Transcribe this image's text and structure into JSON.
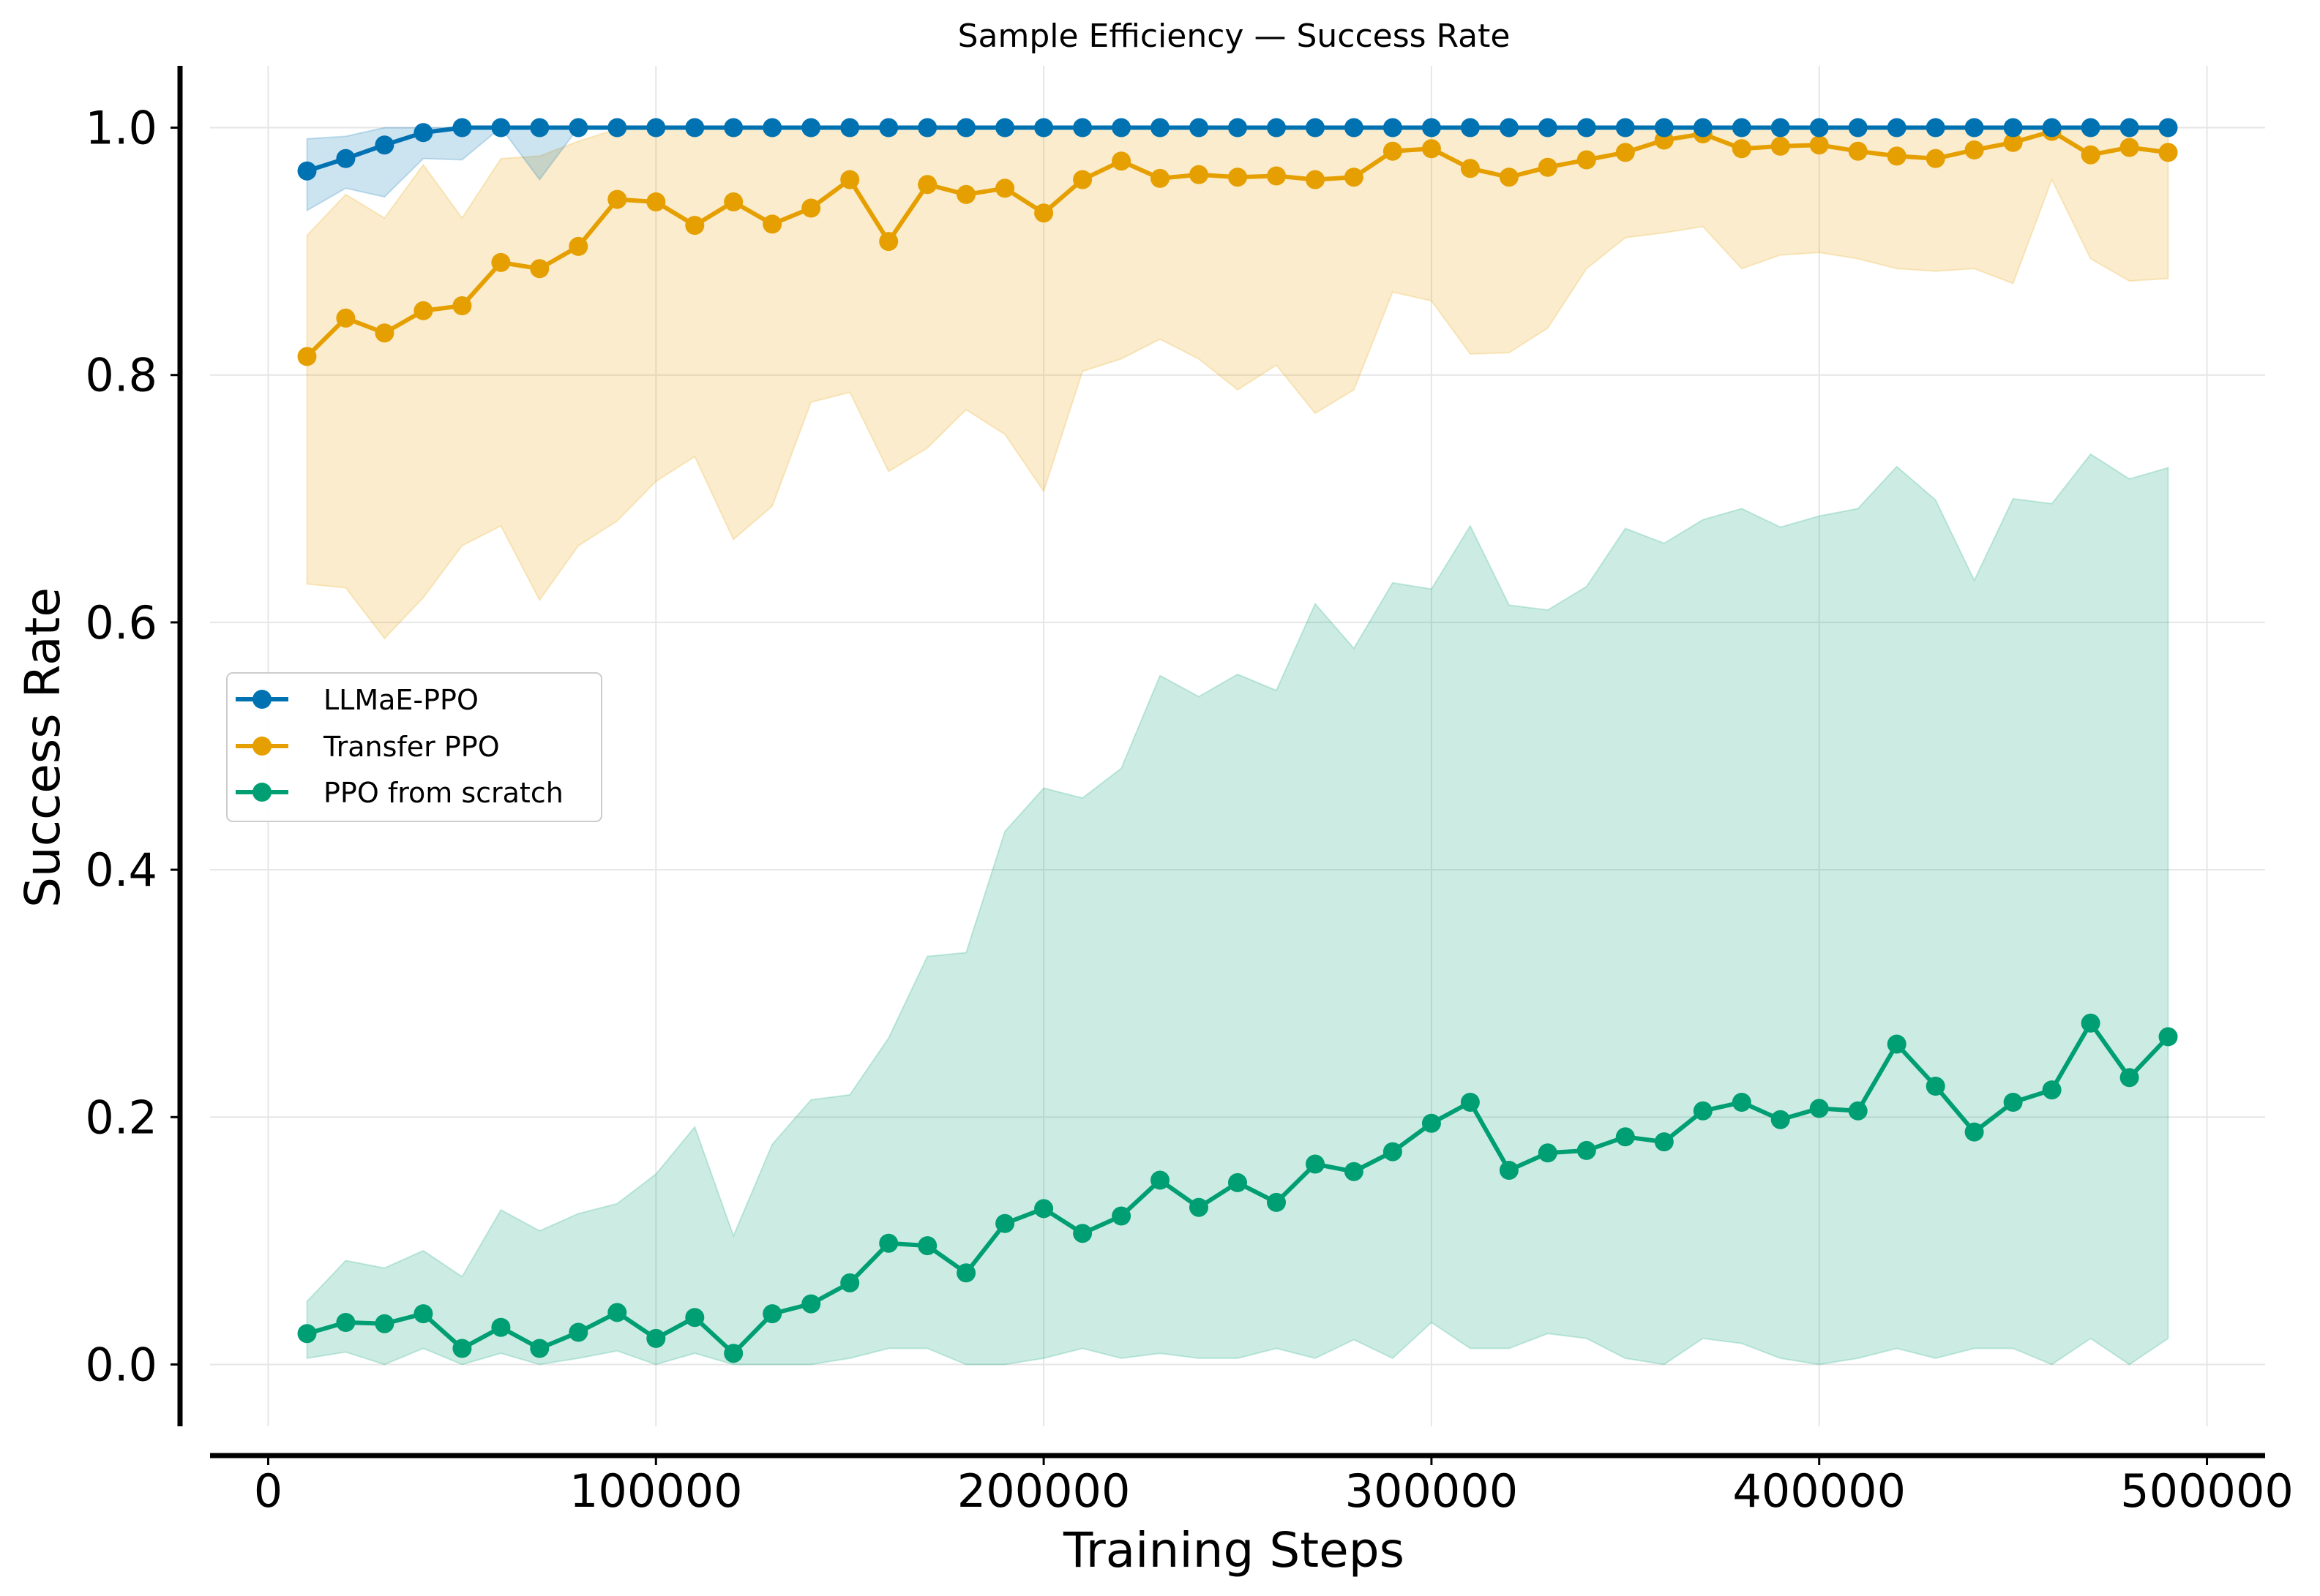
{
  "chart_data": {
    "type": "line",
    "title": "Sample Efficiency — Success Rate",
    "xlabel": "Training Steps",
    "ylabel": "Success Rate",
    "xlim": [
      -15000,
      515000
    ],
    "ylim": [
      -0.05,
      1.05
    ],
    "xticks": [
      0,
      100000,
      200000,
      300000,
      400000,
      500000
    ],
    "xtick_labels": [
      "0",
      "100000",
      "200000",
      "300000",
      "400000",
      "500000"
    ],
    "yticks": [
      0.0,
      0.2,
      0.4,
      0.6,
      0.8,
      1.0
    ],
    "ytick_labels": [
      "0.0",
      "0.2",
      "0.4",
      "0.6",
      "0.8",
      "1.0"
    ],
    "grid": true,
    "legend_position": "center-left",
    "x": [
      10000,
      20000,
      30000,
      40000,
      50000,
      60000,
      70000,
      80000,
      90000,
      100000,
      110000,
      120000,
      130000,
      140000,
      150000,
      160000,
      170000,
      180000,
      190000,
      200000,
      210000,
      220000,
      230000,
      240000,
      250000,
      260000,
      270000,
      280000,
      290000,
      300000,
      310000,
      320000,
      330000,
      340000,
      350000,
      360000,
      370000,
      380000,
      390000,
      400000,
      410000,
      420000,
      430000,
      440000,
      450000,
      460000,
      470000,
      480000,
      490000
    ],
    "series": [
      {
        "name": "LLMaE-PPO",
        "color": "#0072b2",
        "values": [
          0.965,
          0.975,
          0.986,
          0.996,
          1.0,
          1.0,
          1.0,
          1.0,
          1.0,
          1.0,
          1.0,
          1.0,
          1.0,
          1.0,
          1.0,
          1.0,
          1.0,
          1.0,
          1.0,
          1.0,
          1.0,
          1.0,
          1.0,
          1.0,
          1.0,
          1.0,
          1.0,
          1.0,
          1.0,
          1.0,
          1.0,
          1.0,
          1.0,
          1.0,
          1.0,
          1.0,
          1.0,
          1.0,
          1.0,
          1.0,
          1.0,
          1.0,
          1.0,
          1.0,
          1.0,
          1.0,
          1.0,
          1.0,
          1.0
        ],
        "lower": [
          0.933,
          0.951,
          0.944,
          0.975,
          0.974,
          1.0,
          0.958,
          1.0,
          1.0,
          1.0,
          1.0,
          1.0,
          1.0,
          1.0,
          1.0,
          1.0,
          1.0,
          1.0,
          1.0,
          1.0,
          1.0,
          1.0,
          1.0,
          1.0,
          1.0,
          1.0,
          1.0,
          1.0,
          1.0,
          1.0,
          1.0,
          1.0,
          1.0,
          1.0,
          1.0,
          1.0,
          1.0,
          1.0,
          1.0,
          1.0,
          1.0,
          1.0,
          1.0,
          1.0,
          1.0,
          1.0,
          1.0,
          1.0,
          1.0
        ],
        "upper": [
          0.991,
          0.993,
          1.0,
          1.0,
          1.0,
          1.0,
          1.0,
          1.0,
          1.0,
          1.0,
          1.0,
          1.0,
          1.0,
          1.0,
          1.0,
          1.0,
          1.0,
          1.0,
          1.0,
          1.0,
          1.0,
          1.0,
          1.0,
          1.0,
          1.0,
          1.0,
          1.0,
          1.0,
          1.0,
          1.0,
          1.0,
          1.0,
          1.0,
          1.0,
          1.0,
          1.0,
          1.0,
          1.0,
          1.0,
          1.0,
          1.0,
          1.0,
          1.0,
          1.0,
          1.0,
          1.0,
          1.0,
          1.0,
          1.0
        ]
      },
      {
        "name": "Transfer PPO",
        "color": "#e69f00",
        "values": [
          0.815,
          0.846,
          0.834,
          0.852,
          0.856,
          0.891,
          0.886,
          0.904,
          0.942,
          0.94,
          0.921,
          0.94,
          0.922,
          0.935,
          0.958,
          0.908,
          0.954,
          0.946,
          0.951,
          0.931,
          0.958,
          0.973,
          0.959,
          0.962,
          0.96,
          0.961,
          0.958,
          0.96,
          0.981,
          0.983,
          0.967,
          0.96,
          0.968,
          0.974,
          0.98,
          0.99,
          0.995,
          0.983,
          0.985,
          0.986,
          0.981,
          0.977,
          0.975,
          0.982,
          0.988,
          0.997,
          0.978,
          0.984,
          0.98
        ],
        "lower": [
          0.631,
          0.628,
          0.587,
          0.62,
          0.662,
          0.678,
          0.618,
          0.662,
          0.682,
          0.714,
          0.734,
          0.667,
          0.694,
          0.778,
          0.786,
          0.722,
          0.741,
          0.772,
          0.752,
          0.706,
          0.803,
          0.813,
          0.829,
          0.813,
          0.788,
          0.808,
          0.769,
          0.788,
          0.867,
          0.86,
          0.817,
          0.818,
          0.838,
          0.886,
          0.911,
          0.915,
          0.92,
          0.886,
          0.897,
          0.899,
          0.894,
          0.886,
          0.884,
          0.886,
          0.874,
          0.958,
          0.894,
          0.876,
          0.878
        ],
        "upper": [
          0.913,
          0.946,
          0.927,
          0.97,
          0.927,
          0.975,
          0.977,
          0.989,
          0.999,
          1.0,
          1.0,
          1.0,
          1.0,
          1.0,
          1.0,
          1.0,
          1.0,
          1.0,
          1.0,
          1.0,
          1.0,
          1.0,
          1.0,
          1.0,
          1.0,
          1.0,
          1.0,
          1.0,
          1.0,
          1.0,
          1.0,
          1.0,
          1.0,
          1.0,
          1.0,
          1.0,
          1.0,
          1.0,
          1.0,
          1.0,
          1.0,
          1.0,
          1.0,
          1.0,
          1.0,
          1.0,
          1.0,
          1.0,
          1.0
        ]
      },
      {
        "name": "PPO from scratch",
        "color": "#009e73",
        "values": [
          0.025,
          0.034,
          0.033,
          0.041,
          0.013,
          0.03,
          0.013,
          0.026,
          0.042,
          0.021,
          0.038,
          0.009,
          0.041,
          0.049,
          0.066,
          0.098,
          0.096,
          0.074,
          0.114,
          0.126,
          0.106,
          0.12,
          0.149,
          0.127,
          0.147,
          0.131,
          0.162,
          0.156,
          0.172,
          0.195,
          0.212,
          0.157,
          0.171,
          0.173,
          0.184,
          0.18,
          0.205,
          0.212,
          0.198,
          0.207,
          0.205,
          0.259,
          0.225,
          0.188,
          0.212,
          0.222,
          0.276,
          0.232,
          0.265
        ],
        "lower": [
          0.005,
          0.01,
          0.0,
          0.013,
          0.0,
          0.009,
          0.0,
          0.005,
          0.011,
          0.0,
          0.009,
          0.0,
          0.0,
          0.0,
          0.005,
          0.013,
          0.013,
          0.0,
          0.0,
          0.005,
          0.013,
          0.005,
          0.009,
          0.005,
          0.005,
          0.013,
          0.005,
          0.02,
          0.005,
          0.034,
          0.013,
          0.013,
          0.025,
          0.021,
          0.005,
          0.0,
          0.021,
          0.017,
          0.005,
          0.0,
          0.005,
          0.013,
          0.005,
          0.013,
          0.013,
          0.0,
          0.021,
          0.0,
          0.021
        ],
        "upper": [
          0.051,
          0.084,
          0.078,
          0.092,
          0.071,
          0.125,
          0.108,
          0.122,
          0.13,
          0.154,
          0.192,
          0.104,
          0.178,
          0.214,
          0.218,
          0.264,
          0.33,
          0.333,
          0.431,
          0.466,
          0.458,
          0.482,
          0.557,
          0.54,
          0.558,
          0.545,
          0.615,
          0.579,
          0.632,
          0.627,
          0.678,
          0.614,
          0.61,
          0.629,
          0.676,
          0.664,
          0.683,
          0.692,
          0.677,
          0.686,
          0.692,
          0.726,
          0.699,
          0.634,
          0.7,
          0.696,
          0.736,
          0.716,
          0.725
        ]
      }
    ]
  }
}
